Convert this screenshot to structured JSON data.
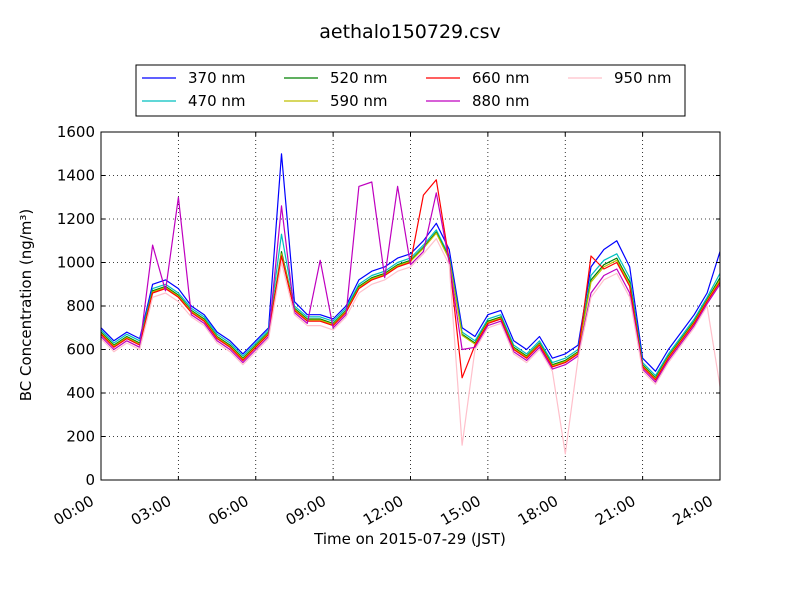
{
  "chart_data": {
    "type": "line",
    "title": "aethalo150729.csv",
    "xlabel": "Time on 2015-07-29 (JST)",
    "ylabel": "BC Concentration (ng/m³)",
    "xlim": [
      "00:00",
      "24:00"
    ],
    "ylim": [
      0,
      1600
    ],
    "x_ticks": [
      "00:00",
      "03:00",
      "06:00",
      "09:00",
      "12:00",
      "15:00",
      "18:00",
      "21:00",
      "24:00"
    ],
    "y_ticks": [
      "0",
      "200",
      "400",
      "600",
      "800",
      "1000",
      "1200",
      "1400",
      "1600"
    ],
    "grid": true,
    "legend_position": "top-center",
    "x": [
      "00:00",
      "00:30",
      "01:00",
      "01:30",
      "02:00",
      "02:30",
      "03:00",
      "03:30",
      "04:00",
      "04:30",
      "05:00",
      "05:30",
      "06:00",
      "06:30",
      "07:00",
      "07:30",
      "08:00",
      "08:30",
      "09:00",
      "09:30",
      "10:00",
      "10:30",
      "11:00",
      "11:30",
      "12:00",
      "12:30",
      "13:00",
      "13:30",
      "14:00",
      "14:30",
      "15:00",
      "15:30",
      "16:00",
      "16:30",
      "17:00",
      "17:30",
      "18:00",
      "18:30",
      "19:00",
      "19:30",
      "20:00",
      "20:30",
      "21:00",
      "21:30",
      "22:00",
      "22:30",
      "23:00",
      "23:30",
      "24:00"
    ],
    "series": [
      {
        "name": "370 nm",
        "color": "#0000ff",
        "values": [
          700,
          640,
          680,
          650,
          900,
          920,
          880,
          800,
          760,
          680,
          640,
          580,
          640,
          700,
          1500,
          820,
          760,
          760,
          740,
          800,
          920,
          960,
          980,
          1020,
          1040,
          1100,
          1180,
          1060,
          700,
          660,
          760,
          780,
          640,
          600,
          660,
          560,
          580,
          620,
          980,
          1060,
          1100,
          980,
          560,
          500,
          600,
          680,
          760,
          860,
          1050
        ]
      },
      {
        "name": "470 nm",
        "color": "#00bfbf",
        "values": [
          690,
          630,
          670,
          640,
          880,
          900,
          860,
          790,
          750,
          670,
          630,
          570,
          630,
          690,
          1130,
          800,
          750,
          750,
          730,
          790,
          900,
          940,
          960,
          1000,
          1020,
          1080,
          1150,
          1030,
          680,
          640,
          740,
          760,
          620,
          580,
          640,
          540,
          560,
          600,
          940,
          1010,
          1040,
          930,
          540,
          480,
          580,
          660,
          740,
          840,
          950
        ]
      },
      {
        "name": "520 nm",
        "color": "#008000",
        "values": [
          680,
          620,
          660,
          630,
          870,
          890,
          850,
          780,
          740,
          660,
          620,
          560,
          620,
          680,
          1050,
          790,
          740,
          740,
          720,
          780,
          890,
          930,
          950,
          990,
          1010,
          1070,
          1140,
          1020,
          670,
          630,
          730,
          750,
          610,
          570,
          630,
          530,
          550,
          590,
          920,
          990,
          1020,
          910,
          530,
          470,
          570,
          650,
          730,
          830,
          930
        ]
      },
      {
        "name": "590 nm",
        "color": "#bfbf00",
        "values": [
          675,
          615,
          655,
          625,
          865,
          885,
          845,
          775,
          735,
          655,
          615,
          555,
          615,
          675,
          1040,
          785,
          735,
          735,
          715,
          775,
          885,
          925,
          945,
          985,
          1005,
          1065,
          1135,
          1015,
          665,
          625,
          725,
          745,
          605,
          565,
          625,
          525,
          545,
          585,
          910,
          980,
          1010,
          900,
          525,
          465,
          565,
          645,
          725,
          825,
          920
        ]
      },
      {
        "name": "660 nm",
        "color": "#ff0000",
        "values": [
          670,
          610,
          650,
          620,
          860,
          880,
          840,
          770,
          730,
          650,
          610,
          550,
          610,
          670,
          1030,
          780,
          730,
          730,
          710,
          770,
          880,
          920,
          940,
          980,
          1000,
          1310,
          1380,
          1010,
          470,
          620,
          720,
          740,
          600,
          560,
          620,
          520,
          540,
          580,
          1030,
          970,
          1000,
          890,
          520,
          460,
          560,
          640,
          720,
          820,
          910
        ]
      },
      {
        "name": "880 nm",
        "color": "#bf00bf",
        "values": [
          660,
          600,
          640,
          610,
          1080,
          870,
          1300,
          760,
          720,
          640,
          600,
          540,
          600,
          660,
          1260,
          770,
          720,
          1010,
          700,
          760,
          1350,
          1370,
          930,
          1350,
          990,
          1050,
          1320,
          1000,
          600,
          610,
          710,
          730,
          590,
          550,
          610,
          510,
          530,
          570,
          860,
          940,
          970,
          860,
          510,
          450,
          550,
          630,
          710,
          810,
          900
        ]
      },
      {
        "name": "950 nm",
        "color": "#ffc0cb",
        "values": [
          650,
          590,
          630,
          600,
          840,
          860,
          820,
          750,
          710,
          630,
          590,
          530,
          590,
          650,
          1000,
          760,
          710,
          710,
          690,
          750,
          860,
          900,
          920,
          960,
          980,
          1040,
          1110,
          990,
          160,
          600,
          700,
          720,
          580,
          540,
          600,
          500,
          120,
          560,
          840,
          920,
          950,
          840,
          500,
          440,
          540,
          620,
          700,
          800,
          430
        ]
      }
    ]
  }
}
